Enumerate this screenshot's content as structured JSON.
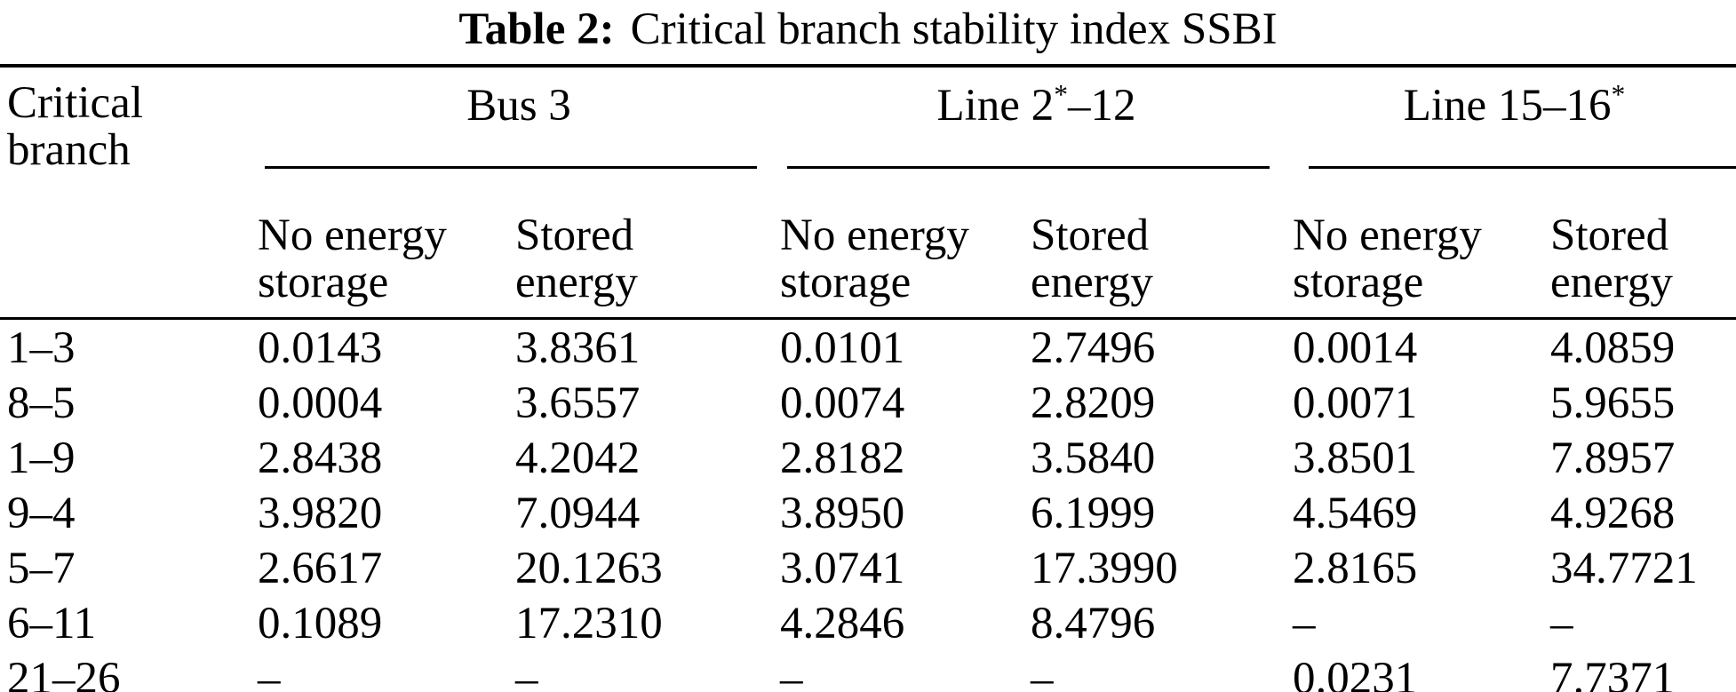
{
  "caption": {
    "label": "Table 2:",
    "text": "Critical branch stability index SSBI"
  },
  "table": {
    "stub_header": {
      "line1": "Critical",
      "line2": "branch"
    },
    "groups": [
      {
        "prefix": "Bus 3",
        "sup": "",
        "suffix": ""
      },
      {
        "prefix": "Line 2",
        "sup": "*",
        "suffix": "–12"
      },
      {
        "prefix": "Line 15–16",
        "sup": "*",
        "suffix": ""
      }
    ],
    "subheader": {
      "no_line1": "No energy",
      "no_line2": "storage",
      "st_line1": "Stored",
      "st_line2": "energy"
    },
    "rows": [
      {
        "branch": "1–3",
        "values": [
          "0.0143",
          "3.8361",
          "0.0101",
          "2.7496",
          "0.0014",
          "4.0859"
        ]
      },
      {
        "branch": "8–5",
        "values": [
          "0.0004",
          "3.6557",
          "0.0074",
          "2.8209",
          "0.0071",
          "5.9655"
        ]
      },
      {
        "branch": "1–9",
        "values": [
          "2.8438",
          "4.2042",
          "2.8182",
          "3.5840",
          "3.8501",
          "7.8957"
        ]
      },
      {
        "branch": "9–4",
        "values": [
          "3.9820",
          "7.0944",
          "3.8950",
          "6.1999",
          "4.5469",
          "4.9268"
        ]
      },
      {
        "branch": "5–7",
        "values": [
          "2.6617",
          "20.1263",
          "3.0741",
          "17.3990",
          "2.8165",
          "34.7721"
        ]
      },
      {
        "branch": "6–11",
        "values": [
          "0.1089",
          "17.2310",
          "4.2846",
          "8.4796",
          "–",
          "–"
        ]
      },
      {
        "branch": "21–26",
        "values": [
          "–",
          "–",
          "–",
          "–",
          "0.0231",
          "7.7371"
        ]
      }
    ],
    "colors": {
      "text": "#000000",
      "background": "#ffffff",
      "rule": "#000000"
    }
  }
}
